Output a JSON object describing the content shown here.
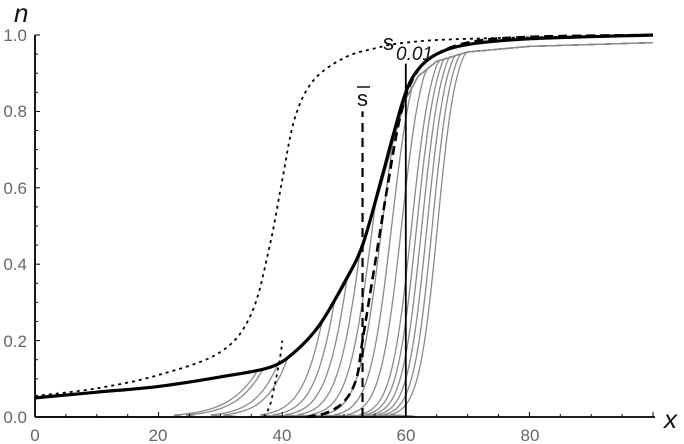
{
  "chart_data": {
    "type": "line",
    "title": "",
    "xlabel": "x",
    "ylabel": "n",
    "xlim": [
      0,
      100
    ],
    "ylim": [
      0,
      1.0
    ],
    "x_ticks": [
      0,
      20,
      40,
      60,
      80
    ],
    "x_tick_labels": [
      "0",
      "20",
      "40",
      "60",
      "80"
    ],
    "y_ticks": [
      0.0,
      0.2,
      0.4,
      0.6,
      0.8,
      1.0
    ],
    "y_tick_labels": [
      "0.0",
      "0.2",
      "0.4",
      "0.6",
      "0.8",
      "1.0"
    ],
    "grid": false,
    "legend": null,
    "annotations": [
      {
        "text": "s̅",
        "label": "s-bar",
        "x": 53,
        "y": 0.82,
        "marker_line_x": 53
      },
      {
        "text": "s",
        "subscript": "0.01",
        "x": 60,
        "y": 0.98,
        "marker_line_x": 60
      }
    ],
    "series": [
      {
        "name": "thick solid (envelope)",
        "style": "solid-thick",
        "color": "#000000",
        "points": [
          [
            0,
            0.05
          ],
          [
            10,
            0.065
          ],
          [
            20,
            0.08
          ],
          [
            30,
            0.105
          ],
          [
            38,
            0.13
          ],
          [
            42,
            0.17
          ],
          [
            46,
            0.24
          ],
          [
            50,
            0.35
          ],
          [
            53,
            0.45
          ],
          [
            56,
            0.62
          ],
          [
            58,
            0.74
          ],
          [
            60,
            0.85
          ],
          [
            62,
            0.91
          ],
          [
            65,
            0.95
          ],
          [
            70,
            0.975
          ],
          [
            80,
            0.99
          ],
          [
            100,
            1.0
          ]
        ]
      },
      {
        "name": "dotted",
        "style": "dotted",
        "color": "#000000",
        "points": [
          [
            0,
            0.055
          ],
          [
            10,
            0.075
          ],
          [
            20,
            0.11
          ],
          [
            30,
            0.17
          ],
          [
            35,
            0.27
          ],
          [
            38,
            0.45
          ],
          [
            40,
            0.62
          ],
          [
            42,
            0.78
          ],
          [
            45,
            0.88
          ],
          [
            50,
            0.94
          ],
          [
            55,
            0.965
          ],
          [
            60,
            0.98
          ],
          [
            70,
            0.99
          ],
          [
            100,
            1.0
          ]
        ]
      },
      {
        "name": "dotted step",
        "style": "dotted",
        "color": "#000000",
        "points": [
          [
            37,
            0.0
          ],
          [
            38,
            0.03
          ],
          [
            39,
            0.1
          ],
          [
            39.8,
            0.17
          ],
          [
            40,
            0.2
          ]
        ]
      },
      {
        "name": "thick dashed",
        "style": "dashed-thick",
        "color": "#000000",
        "points": [
          [
            44,
            0.0
          ],
          [
            47,
            0.01
          ],
          [
            50,
            0.04
          ],
          [
            52,
            0.1
          ],
          [
            53,
            0.2
          ],
          [
            55,
            0.4
          ],
          [
            57,
            0.6
          ],
          [
            59,
            0.78
          ],
          [
            61,
            0.88
          ],
          [
            64,
            0.94
          ],
          [
            70,
            0.98
          ],
          [
            80,
            0.995
          ],
          [
            100,
            1.0
          ]
        ]
      },
      {
        "name": "gray family",
        "style": "solid-thin",
        "color": "#888888",
        "start_x": [
          22,
          24,
          28,
          30,
          36,
          38,
          40,
          42,
          44,
          46,
          48,
          50,
          52,
          53,
          54,
          55,
          56,
          57
        ]
      }
    ]
  },
  "axes": {
    "x_label": "x",
    "y_label": "n",
    "s_bar_label": "s",
    "s_001_label": "s",
    "s_001_sub": "0.01",
    "x_tick_labels": [
      "0",
      "20",
      "40",
      "60",
      "80"
    ],
    "y_tick_labels": [
      "0.0",
      "0.2",
      "0.4",
      "0.6",
      "0.8",
      "1.0"
    ]
  }
}
